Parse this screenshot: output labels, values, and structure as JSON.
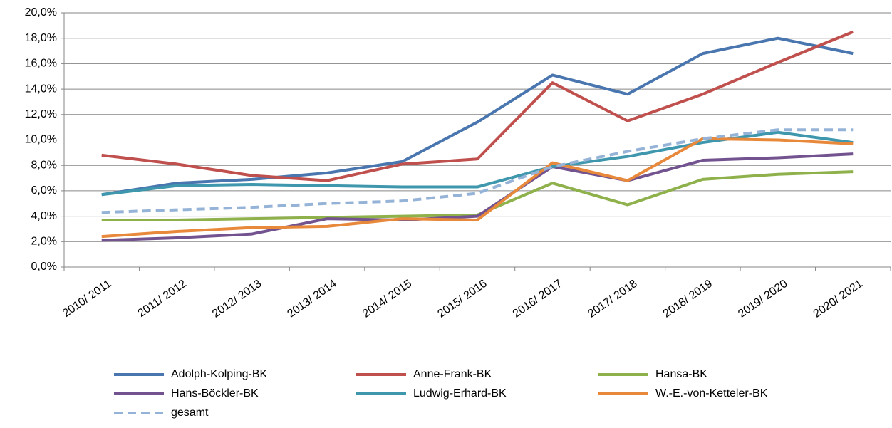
{
  "chart_data": {
    "type": "line",
    "categories": [
      "2010/ 2011",
      "2011/ 2012",
      "2012/ 2013",
      "2013/ 2014",
      "2014/ 2015",
      "2015/ 2016",
      "2016/ 2017",
      "2017/ 2018",
      "2018/ 2019",
      "2019/ 2020",
      "2020/ 2021"
    ],
    "series": [
      {
        "name": "Adolph-Kolping-BK",
        "color": "#4a76b0",
        "values": [
          5.7,
          6.6,
          6.9,
          7.4,
          8.3,
          11.4,
          15.1,
          13.6,
          16.8,
          18.0,
          16.8
        ]
      },
      {
        "name": "Anne-Frank-BK",
        "color": "#c0504d",
        "values": [
          8.8,
          8.1,
          7.2,
          6.8,
          8.1,
          8.5,
          14.5,
          11.5,
          13.6,
          16.1,
          18.5
        ]
      },
      {
        "name": "Hansa-BK",
        "color": "#8eb14c",
        "values": [
          3.7,
          3.7,
          3.8,
          3.9,
          4.0,
          4.1,
          6.6,
          4.9,
          6.9,
          7.3,
          7.5
        ]
      },
      {
        "name": "Hans-Böckler-BK",
        "color": "#73538f",
        "values": [
          2.1,
          2.3,
          2.6,
          3.8,
          3.7,
          4.0,
          7.9,
          6.8,
          8.4,
          8.6,
          8.9
        ]
      },
      {
        "name": "Ludwig-Erhard-BK",
        "color": "#3e97ad",
        "values": [
          5.7,
          6.4,
          6.5,
          6.4,
          6.3,
          6.3,
          7.9,
          8.7,
          9.8,
          10.6,
          9.8
        ]
      },
      {
        "name": "W.-E.-von-Ketteler-BK",
        "color": "#e8883b",
        "values": [
          2.4,
          2.8,
          3.1,
          3.2,
          3.8,
          3.7,
          8.2,
          6.8,
          10.1,
          10.0,
          9.7
        ]
      },
      {
        "name": "gesamt",
        "color": "#95b3d7",
        "dashed": true,
        "values": [
          4.3,
          4.5,
          4.7,
          5.0,
          5.2,
          5.8,
          7.9,
          9.1,
          10.1,
          10.8,
          10.8
        ]
      }
    ],
    "ylim": [
      0,
      20
    ],
    "yticks": [
      {
        "value": 0,
        "label": "0,0%"
      },
      {
        "value": 2,
        "label": "2,0%"
      },
      {
        "value": 4,
        "label": "4,0%"
      },
      {
        "value": 6,
        "label": "6,0%"
      },
      {
        "value": 8,
        "label": "8,0%"
      },
      {
        "value": 10,
        "label": "10,0%"
      },
      {
        "value": 12,
        "label": "12,0%"
      },
      {
        "value": 14,
        "label": "14,0%"
      },
      {
        "value": 16,
        "label": "16,0%"
      },
      {
        "value": 18,
        "label": "18,0%"
      },
      {
        "value": 20,
        "label": "20,0%"
      }
    ],
    "grid": true,
    "legend": "bottom"
  }
}
